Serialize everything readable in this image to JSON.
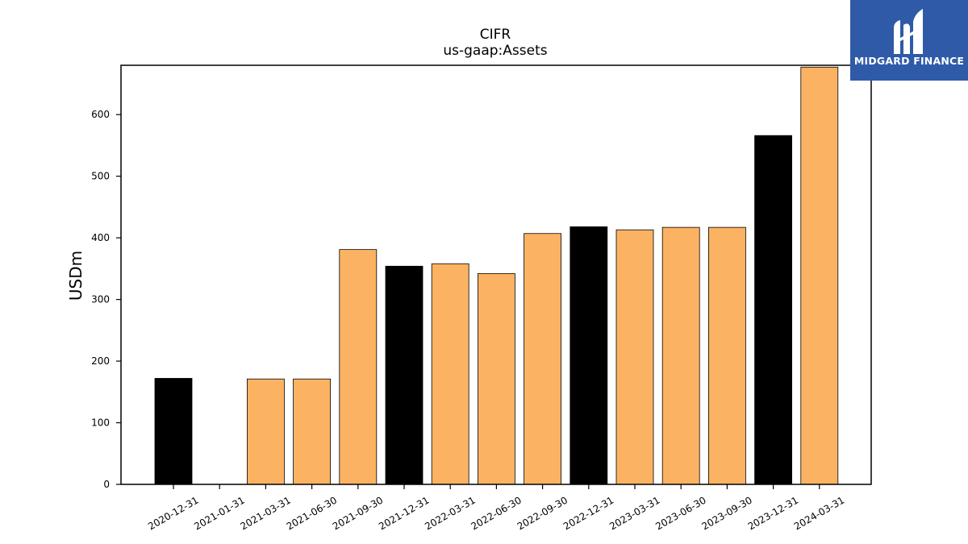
{
  "chart_data": {
    "type": "bar",
    "title": "CIFR",
    "subtitle": "us-gaap:Assets",
    "xlabel": "",
    "ylabel": "USDm",
    "ylim": [
      0,
      680
    ],
    "yticks": [
      0,
      100,
      200,
      300,
      400,
      500,
      600
    ],
    "grid": false,
    "categories": [
      "2020-12-31",
      "2021-01-31",
      "2021-03-31",
      "2021-06-30",
      "2021-09-30",
      "2021-12-31",
      "2022-03-31",
      "2022-06-30",
      "2022-09-30",
      "2022-12-31",
      "2023-03-31",
      "2023-06-30",
      "2023-09-30",
      "2023-12-31",
      "2024-03-31"
    ],
    "values": [
      172,
      0,
      171,
      171,
      381,
      354,
      358,
      342,
      407,
      418,
      413,
      417,
      417,
      566,
      677
    ],
    "bar_colors": [
      "#000000",
      "#000000",
      "#fbb363",
      "#fbb363",
      "#fbb363",
      "#000000",
      "#fbb363",
      "#fbb363",
      "#fbb363",
      "#000000",
      "#fbb363",
      "#fbb363",
      "#fbb363",
      "#000000",
      "#fbb363"
    ]
  },
  "logo": {
    "text": "MIDGARD FINANCE",
    "background": "#2f5aa8"
  }
}
